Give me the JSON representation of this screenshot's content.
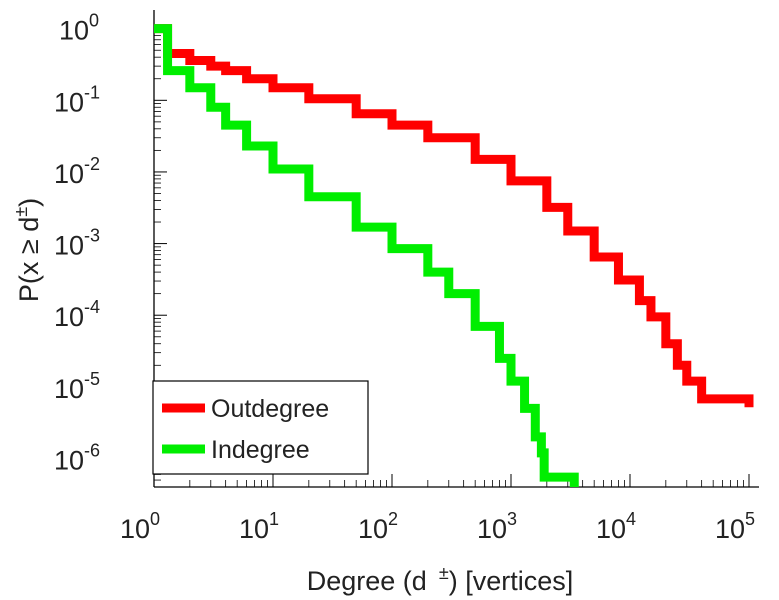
{
  "chart_data": {
    "type": "line",
    "title": "",
    "xlabel": "Degree (d ±) [vertices]",
    "xlabel_main": "Degree (d",
    "xlabel_sup": "±",
    "xlabel_tail": ") [vertices]",
    "ylabel": "P(x ≥ d±)",
    "ylabel_main": "P(x ≥ d",
    "ylabel_sup": "±",
    "ylabel_tail": ")",
    "x_scale": "log",
    "y_scale": "log",
    "xlim": [
      1,
      100000
    ],
    "ylim": [
      4e-07,
      1.2
    ],
    "x_ticks": [
      {
        "value": 1,
        "base": "10",
        "exp": "0"
      },
      {
        "value": 10,
        "base": "10",
        "exp": "1"
      },
      {
        "value": 100,
        "base": "10",
        "exp": "2"
      },
      {
        "value": 1000,
        "base": "10",
        "exp": "3"
      },
      {
        "value": 10000,
        "base": "10",
        "exp": "4"
      },
      {
        "value": 100000,
        "base": "10",
        "exp": "5"
      }
    ],
    "y_ticks": [
      {
        "value": 1,
        "base": "10",
        "exp": "0"
      },
      {
        "value": 0.1,
        "base": "10",
        "exp": "-1"
      },
      {
        "value": 0.01,
        "base": "10",
        "exp": "-2"
      },
      {
        "value": 0.001,
        "base": "10",
        "exp": "-3"
      },
      {
        "value": 0.0001,
        "base": "10",
        "exp": "-4"
      },
      {
        "value": 1e-05,
        "base": "10",
        "exp": "-5"
      },
      {
        "value": 1e-06,
        "base": "10",
        "exp": "-6"
      }
    ],
    "grid": false,
    "legend_position": "bottom-left",
    "series": [
      {
        "name": "Outdegree",
        "color": "#ff0000",
        "points": [
          [
            1,
            1.0
          ],
          [
            1.3,
            0.45
          ],
          [
            2,
            0.45
          ],
          [
            2,
            0.36
          ],
          [
            3,
            0.3
          ],
          [
            4,
            0.26
          ],
          [
            6,
            0.2
          ],
          [
            10,
            0.15
          ],
          [
            20,
            0.105
          ],
          [
            50,
            0.065
          ],
          [
            100,
            0.045
          ],
          [
            200,
            0.03
          ],
          [
            500,
            0.015
          ],
          [
            1000,
            0.0075
          ],
          [
            2000,
            0.0032
          ],
          [
            3000,
            0.0015
          ],
          [
            5000,
            0.00065
          ],
          [
            8000,
            0.00031
          ],
          [
            12000,
            0.00016
          ],
          [
            15000,
            9.5e-05
          ],
          [
            20000,
            4e-05
          ],
          [
            25000,
            2e-05
          ],
          [
            30000,
            1.2e-05
          ],
          [
            40000,
            6.8e-06
          ],
          [
            100000,
            6.8e-06
          ],
          [
            100000,
            5.2e-06
          ]
        ]
      },
      {
        "name": "Indegree",
        "color": "#00ee00",
        "points": [
          [
            1,
            1.0
          ],
          [
            1.3,
            0.26
          ],
          [
            2,
            0.26
          ],
          [
            2,
            0.15
          ],
          [
            3,
            0.08
          ],
          [
            4,
            0.045
          ],
          [
            6,
            0.023
          ],
          [
            10,
            0.011
          ],
          [
            20,
            0.0045
          ],
          [
            50,
            0.0017
          ],
          [
            100,
            0.00085
          ],
          [
            200,
            0.0004
          ],
          [
            300,
            0.0002
          ],
          [
            500,
            7e-05
          ],
          [
            800,
            2.5e-05
          ],
          [
            1000,
            1.2e-05
          ],
          [
            1300,
            5e-06
          ],
          [
            1600,
            2e-06
          ],
          [
            1800,
            1.2e-06
          ],
          [
            1900,
            5.5e-07
          ],
          [
            3400,
            5.5e-07
          ],
          [
            3400,
            4e-07
          ]
        ]
      }
    ]
  }
}
